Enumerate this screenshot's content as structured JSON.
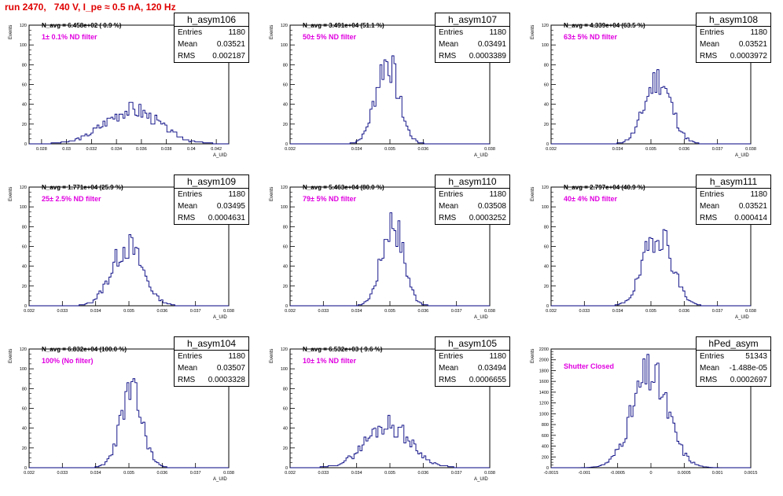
{
  "title": "run 2470,   740 V, I_pe ≈ 0.5 nA, 120 Hz",
  "colors": {
    "title": "#e00000",
    "filter_text": "#e000e0",
    "histogram": "#000080"
  },
  "chart_data": [
    {
      "type": "bar",
      "name": "h_asym106",
      "navg": "N_avg = 6.458e+02 ( 0.9 %)",
      "filter": "1± 0.1% ND filter",
      "ylabel": "Events",
      "xlabel": "A_UID",
      "stats": {
        "entries": "1180",
        "mean": "0.03521",
        "rms": "0.002187"
      },
      "xlim": [
        0.027,
        0.043
      ],
      "ylim": [
        0,
        120
      ],
      "xticks": [
        0.028,
        0.03,
        0.032,
        0.034,
        0.036,
        0.038,
        0.04,
        0.042
      ],
      "xtick_labels": [
        "0.028",
        "0.03",
        "0.032",
        "0.034",
        "0.036",
        "0.038",
        "0.04",
        "0.042"
      ],
      "yticks": [
        0,
        20,
        40,
        60,
        80,
        100,
        120
      ],
      "ytick_labels": [
        "0",
        "20",
        "40",
        "60",
        "80",
        "100",
        "120"
      ],
      "hist": {
        "mean": 0.03521,
        "rms": 0.002187,
        "peak": 42,
        "seed": 3
      }
    },
    {
      "type": "bar",
      "name": "h_asym107",
      "navg": "N_avg = 3.491e+04 (51.1 %)",
      "filter": "50± 5% ND filter",
      "ylabel": "Events",
      "xlabel": "A_UID",
      "stats": {
        "entries": "1180",
        "mean": "0.03491",
        "rms": "0.0003389"
      },
      "xlim": [
        0.032,
        0.038
      ],
      "ylim": [
        0,
        120
      ],
      "xticks": [
        0.032,
        0.034,
        0.035,
        0.036,
        0.038
      ],
      "xtick_labels": [
        "0.032",
        "0.034",
        "0.035",
        "0.036",
        "0.038"
      ],
      "yticks": [
        0,
        20,
        40,
        60,
        80,
        100,
        120
      ],
      "ytick_labels": [
        "0",
        "20",
        "40",
        "60",
        "80",
        "100",
        "120"
      ],
      "hist": {
        "mean": 0.03491,
        "rms": 0.0003389,
        "peak": 89,
        "seed": 7
      }
    },
    {
      "type": "bar",
      "name": "h_asym108",
      "navg": "N_avg = 4.339e+04 (63.5 %)",
      "filter": "63± 5% ND filter",
      "ylabel": "Events",
      "xlabel": "A_UID",
      "stats": {
        "entries": "1180",
        "mean": "0.03521",
        "rms": "0.0003972"
      },
      "xlim": [
        0.032,
        0.038
      ],
      "ylim": [
        0,
        120
      ],
      "xticks": [
        0.032,
        0.034,
        0.035,
        0.036,
        0.037,
        0.038
      ],
      "xtick_labels": [
        "0.032",
        "0.034",
        "0.035",
        "0.036",
        "0.037",
        "0.038"
      ],
      "yticks": [
        0,
        20,
        40,
        60,
        80,
        100,
        120
      ],
      "ytick_labels": [
        "0",
        "20",
        "40",
        "60",
        "80",
        "100",
        "120"
      ],
      "hist": {
        "mean": 0.03521,
        "rms": 0.0003972,
        "peak": 75,
        "seed": 11
      }
    },
    {
      "type": "bar",
      "name": "h_asym109",
      "navg": "N_avg = 1.771e+04 (25.9 %)",
      "filter": "25± 2.5% ND filter",
      "ylabel": "Events",
      "xlabel": "A_UID",
      "stats": {
        "entries": "1180",
        "mean": "0.03495",
        "rms": "0.0004631"
      },
      "xlim": [
        0.032,
        0.038
      ],
      "ylim": [
        0,
        120
      ],
      "xticks": [
        0.032,
        0.033,
        0.034,
        0.035,
        0.036,
        0.037,
        0.038
      ],
      "xtick_labels": [
        "0.032",
        "0.033",
        "0.034",
        "0.035",
        "0.036",
        "0.037",
        "0.038"
      ],
      "yticks": [
        0,
        20,
        40,
        60,
        80,
        100,
        120
      ],
      "ytick_labels": [
        "0",
        "20",
        "40",
        "60",
        "80",
        "100",
        "120"
      ],
      "hist": {
        "mean": 0.03495,
        "rms": 0.0004631,
        "peak": 72,
        "seed": 13
      }
    },
    {
      "type": "bar",
      "name": "h_asym110",
      "navg": "N_avg = 5.463e+04 (80.0 %)",
      "filter": "79± 5% ND filter",
      "ylabel": "Events",
      "xlabel": "A_UID",
      "stats": {
        "entries": "1180",
        "mean": "0.03508",
        "rms": "0.0003252"
      },
      "xlim": [
        0.032,
        0.038
      ],
      "ylim": [
        0,
        120
      ],
      "xticks": [
        0.032,
        0.033,
        0.034,
        0.035,
        0.036,
        0.037,
        0.038
      ],
      "xtick_labels": [
        "0.032",
        "0.033",
        "0.034",
        "0.035",
        "0.036",
        "0.037",
        "0.038"
      ],
      "yticks": [
        0,
        20,
        40,
        60,
        80,
        100,
        120
      ],
      "ytick_labels": [
        "0",
        "20",
        "40",
        "60",
        "80",
        "100",
        "120"
      ],
      "hist": {
        "mean": 0.03508,
        "rms": 0.0003252,
        "peak": 94,
        "seed": 17
      }
    },
    {
      "type": "bar",
      "name": "h_asym111",
      "navg": "N_avg = 2.797e+04 (40.9 %)",
      "filter": "40± 4% ND filter",
      "ylabel": "Events",
      "xlabel": "A_UID",
      "stats": {
        "entries": "1180",
        "mean": "0.03521",
        "rms": "0.000414"
      },
      "xlim": [
        0.032,
        0.038
      ],
      "ylim": [
        0,
        120
      ],
      "xticks": [
        0.032,
        0.033,
        0.034,
        0.035,
        0.036,
        0.037,
        0.038
      ],
      "xtick_labels": [
        "0.032",
        "0.033",
        "0.034",
        "0.035",
        "0.036",
        "0.037",
        "0.038"
      ],
      "yticks": [
        0,
        20,
        40,
        60,
        80,
        100,
        120
      ],
      "ytick_labels": [
        "0",
        "20",
        "40",
        "60",
        "80",
        "100",
        "120"
      ],
      "hist": {
        "mean": 0.03521,
        "rms": 0.000414,
        "peak": 77,
        "seed": 19
      }
    },
    {
      "type": "bar",
      "name": "h_asym104",
      "navg": "N_avg = 6.832e+04 (100.0 %)",
      "filter": "100% (No filter)",
      "ylabel": "Events",
      "xlabel": "A_UID",
      "stats": {
        "entries": "1180",
        "mean": "0.03507",
        "rms": "0.0003328"
      },
      "xlim": [
        0.032,
        0.038
      ],
      "ylim": [
        0,
        120
      ],
      "xticks": [
        0.032,
        0.033,
        0.034,
        0.035,
        0.036,
        0.037,
        0.038
      ],
      "xtick_labels": [
        "0.032",
        "0.033",
        "0.034",
        "0.035",
        "0.036",
        "0.037",
        "0.038"
      ],
      "yticks": [
        0,
        20,
        40,
        60,
        80,
        100,
        120
      ],
      "ytick_labels": [
        "0",
        "20",
        "40",
        "60",
        "80",
        "100",
        "120"
      ],
      "hist": {
        "mean": 0.03507,
        "rms": 0.0003328,
        "peak": 90,
        "seed": 23
      }
    },
    {
      "type": "bar",
      "name": "h_asym105",
      "navg": "N_avg = 6.532e+03 ( 9.6 %)",
      "filter": "10± 1% ND filter",
      "ylabel": "Events",
      "xlabel": "A_UID",
      "stats": {
        "entries": "1180",
        "mean": "0.03494",
        "rms": "0.0006655"
      },
      "xlim": [
        0.032,
        0.038
      ],
      "ylim": [
        0,
        120
      ],
      "xticks": [
        0.032,
        0.033,
        0.034,
        0.035,
        0.036,
        0.037,
        0.038
      ],
      "xtick_labels": [
        "0.032",
        "0.033",
        "0.034",
        "0.035",
        "0.036",
        "0.037",
        "0.038"
      ],
      "yticks": [
        0,
        20,
        40,
        60,
        80,
        100,
        120
      ],
      "ytick_labels": [
        "0",
        "20",
        "40",
        "60",
        "80",
        "100",
        "120"
      ],
      "hist": {
        "mean": 0.03494,
        "rms": 0.0006655,
        "peak": 53,
        "seed": 29
      }
    },
    {
      "type": "bar",
      "name": "hPed_asym",
      "navg": "",
      "filter": "Shutter Closed",
      "ylabel": "Events",
      "xlabel": "",
      "stats": {
        "entries": "51343",
        "mean": "-1.488e-05",
        "rms": "0.0002697"
      },
      "xlim": [
        -0.0015,
        0.0015
      ],
      "ylim": [
        0,
        2200
      ],
      "xticks": [
        -0.0015,
        -0.001,
        -0.0005,
        0,
        0.0005,
        0.001,
        0.0015
      ],
      "xtick_labels": [
        "-0.0015",
        "-0.001",
        "-0.0005",
        "0",
        "0.0005",
        "0.001",
        "0.0015"
      ],
      "yticks": [
        0,
        200,
        400,
        600,
        800,
        1000,
        1200,
        1400,
        1600,
        1800,
        2000,
        2200
      ],
      "ytick_labels": [
        "0",
        "200",
        "400",
        "600",
        "800",
        "1000",
        "1200",
        "1400",
        "1600",
        "1800",
        "2000",
        "2200"
      ],
      "hist": {
        "mean": -1.488e-05,
        "rms": 0.0002697,
        "peak": 2100,
        "seed": 31
      }
    }
  ]
}
